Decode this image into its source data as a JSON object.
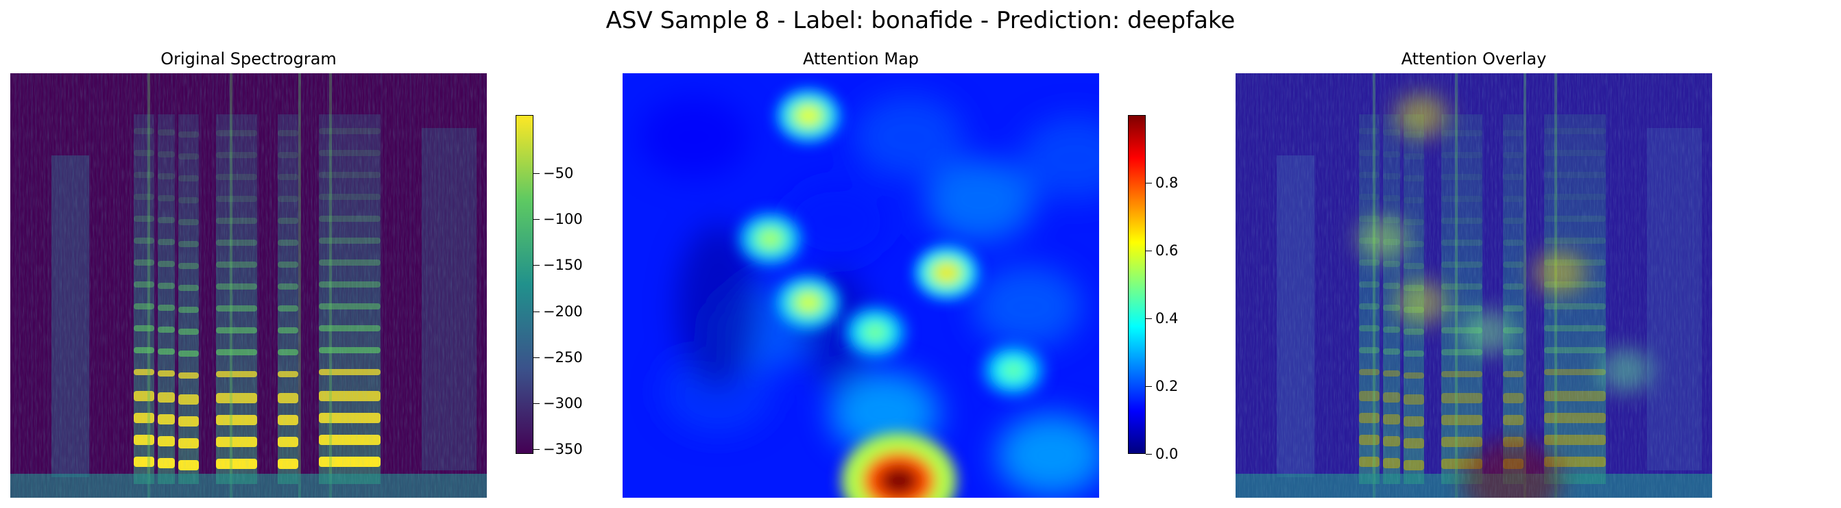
{
  "title": "ASV Sample 8 - Label: bonafide - Prediction: deepfake",
  "chart_data": [
    {
      "type": "heatmap",
      "title": "Original Spectrogram",
      "axes": "off",
      "colormap": "viridis",
      "colorbar": {
        "ticks": [
          -50,
          -100,
          -150,
          -200,
          -250,
          -300,
          -350
        ],
        "tick_labels": [
          "−50",
          "−100",
          "−150",
          "−200",
          "−250",
          "−300",
          "−350"
        ],
        "range": [
          -355,
          13
        ]
      }
    },
    {
      "type": "heatmap",
      "title": "Attention Map",
      "axes": "off",
      "colormap": "jet",
      "colorbar": {
        "ticks": [
          0.0,
          0.2,
          0.4,
          0.6,
          0.8
        ],
        "tick_labels": [
          "0.0",
          "0.2",
          "0.4",
          "0.6",
          "0.8"
        ],
        "range": [
          0,
          1
        ]
      },
      "hotspots": [
        {
          "x": 0.39,
          "y": 0.1,
          "value": 0.62
        },
        {
          "x": 0.31,
          "y": 0.39,
          "value": 0.55
        },
        {
          "x": 0.39,
          "y": 0.54,
          "value": 0.6
        },
        {
          "x": 0.68,
          "y": 0.47,
          "value": 0.65
        },
        {
          "x": 0.53,
          "y": 0.61,
          "value": 0.5
        },
        {
          "x": 0.82,
          "y": 0.7,
          "value": 0.48
        },
        {
          "x": 0.58,
          "y": 0.96,
          "value": 1.0
        }
      ]
    },
    {
      "type": "heatmap",
      "title": "Attention Overlay",
      "axes": "off",
      "overlay_of": [
        "Original Spectrogram",
        "Attention Map"
      ]
    }
  ]
}
